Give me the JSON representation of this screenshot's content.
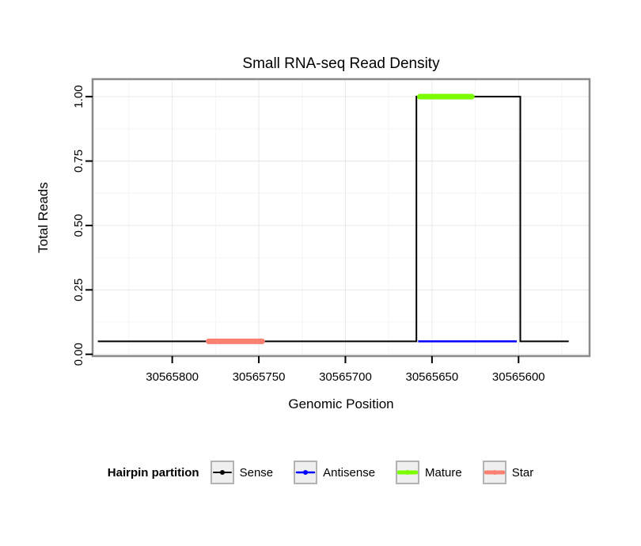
{
  "chart_data": {
    "type": "line",
    "title": "Small RNA-seq Read Density",
    "xlabel": "Genomic Position",
    "ylabel": "Total Reads",
    "x_reversed": true,
    "xlim": [
      30565846,
      30565559
    ],
    "ylim": [
      -0.007,
      1.068
    ],
    "x_ticks": [
      {
        "value": 30565800,
        "label": "30565800"
      },
      {
        "value": 30565750,
        "label": "30565750"
      },
      {
        "value": 30565700,
        "label": "30565700"
      },
      {
        "value": 30565650,
        "label": "30565650"
      },
      {
        "value": 30565600,
        "label": "30565600"
      }
    ],
    "y_ticks": [
      {
        "value": 0,
        "label": "0.00"
      },
      {
        "value": 0.25,
        "label": "0.25"
      },
      {
        "value": 0.5,
        "label": "0.50"
      },
      {
        "value": 0.75,
        "label": "0.75"
      },
      {
        "value": 1,
        "label": "1.00"
      }
    ],
    "grid": {
      "major": true,
      "minor": true
    },
    "series": [
      {
        "name": "Sense",
        "color": "#000000",
        "line_width": 2,
        "points": [
          [
            30565843,
            0.05
          ],
          [
            30565659,
            0.05
          ],
          [
            30565659,
            1.0
          ],
          [
            30565599,
            1.0
          ],
          [
            30565599,
            0.05
          ],
          [
            30565571,
            0.05
          ]
        ]
      },
      {
        "name": "Antisense",
        "color": "#0000ff",
        "line_width": 2.5,
        "points": [
          [
            30565658,
            0.05
          ],
          [
            30565601,
            0.05
          ]
        ]
      },
      {
        "name": "Mature",
        "color": "#7cfc00",
        "line_width": 7,
        "points": [
          [
            30565657,
            1.0
          ],
          [
            30565627,
            1.0
          ]
        ]
      },
      {
        "name": "Star",
        "color": "#fa8072",
        "line_width": 7,
        "points": [
          [
            30565779,
            0.05
          ],
          [
            30565748,
            0.05
          ]
        ]
      }
    ],
    "legend": {
      "title": "Hairpin partition",
      "entries": [
        {
          "label": "Sense",
          "color": "#000000",
          "line_width": 2
        },
        {
          "label": "Antisense",
          "color": "#0000ff",
          "line_width": 2.5
        },
        {
          "label": "Mature",
          "color": "#7cfc00",
          "line_width": 5
        },
        {
          "label": "Star",
          "color": "#fa8072",
          "line_width": 5
        }
      ]
    }
  }
}
